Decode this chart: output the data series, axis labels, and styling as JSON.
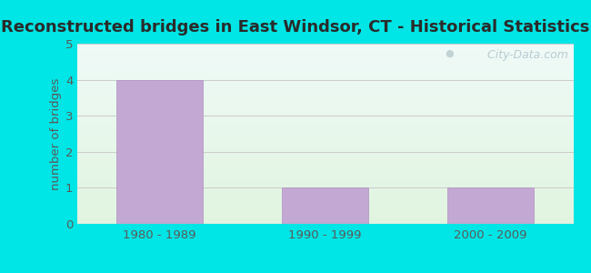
{
  "title": "Reconstructed bridges in East Windsor, CT - Historical Statistics",
  "categories": [
    "1980 - 1989",
    "1990 - 1999",
    "2000 - 2009"
  ],
  "values": [
    4,
    1,
    1
  ],
  "bar_color": "#c4a8d4",
  "bar_edge_color": "#b090c0",
  "ylabel": "number of bridges",
  "ylim": [
    0,
    5
  ],
  "yticks": [
    0,
    1,
    2,
    3,
    4,
    5
  ],
  "background_outer": "#00e5e5",
  "title_color": "#2a2a2a",
  "axis_label_color": "#5a5a5a",
  "tick_color": "#5a5a5a",
  "grid_color": "#cccccc",
  "watermark_text": " City-Data.com",
  "title_fontsize": 13,
  "label_fontsize": 9.5
}
